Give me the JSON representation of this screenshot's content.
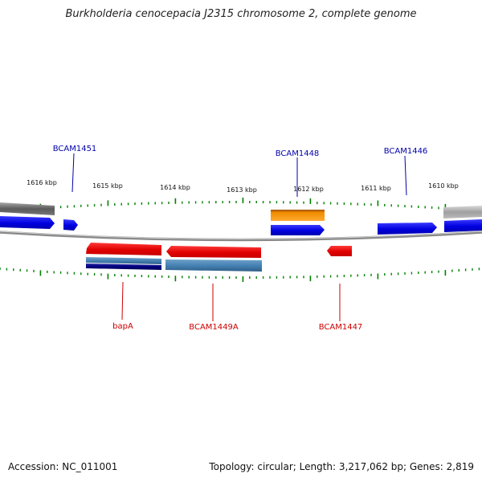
{
  "title": "Burkholderia cenocepacia J2315 chromosome 2, complete genome",
  "accession_label": "Accession: NC_011001",
  "genome_stats": "Topology: circular; Length: 3,217,062 bp; Genes: 2,819",
  "kbp_labels": [
    "1616 kbp",
    "1615 kbp",
    "1614 kbp",
    "1613 kbp",
    "1612 kbp",
    "1611 kbp",
    "1610 kbp"
  ],
  "forward_gene_labels": [
    "BCAM1451",
    "BCAM1448",
    "BCAM1446"
  ],
  "reverse_gene_labels": [
    "bapA",
    "BCAM1449A",
    "BCAM1447"
  ],
  "colors": {
    "forward_cds": "#0000ee",
    "reverse_cds": "#ee0000",
    "forward_label": "#0000aa",
    "reverse_label": "#cc0000",
    "orange_feature": "#f08c00",
    "steelblue_feature": "#4682b4",
    "navy_feature": "#000080",
    "gray_feature": "#808080",
    "backbone": "#999999",
    "tick": "#008000"
  }
}
